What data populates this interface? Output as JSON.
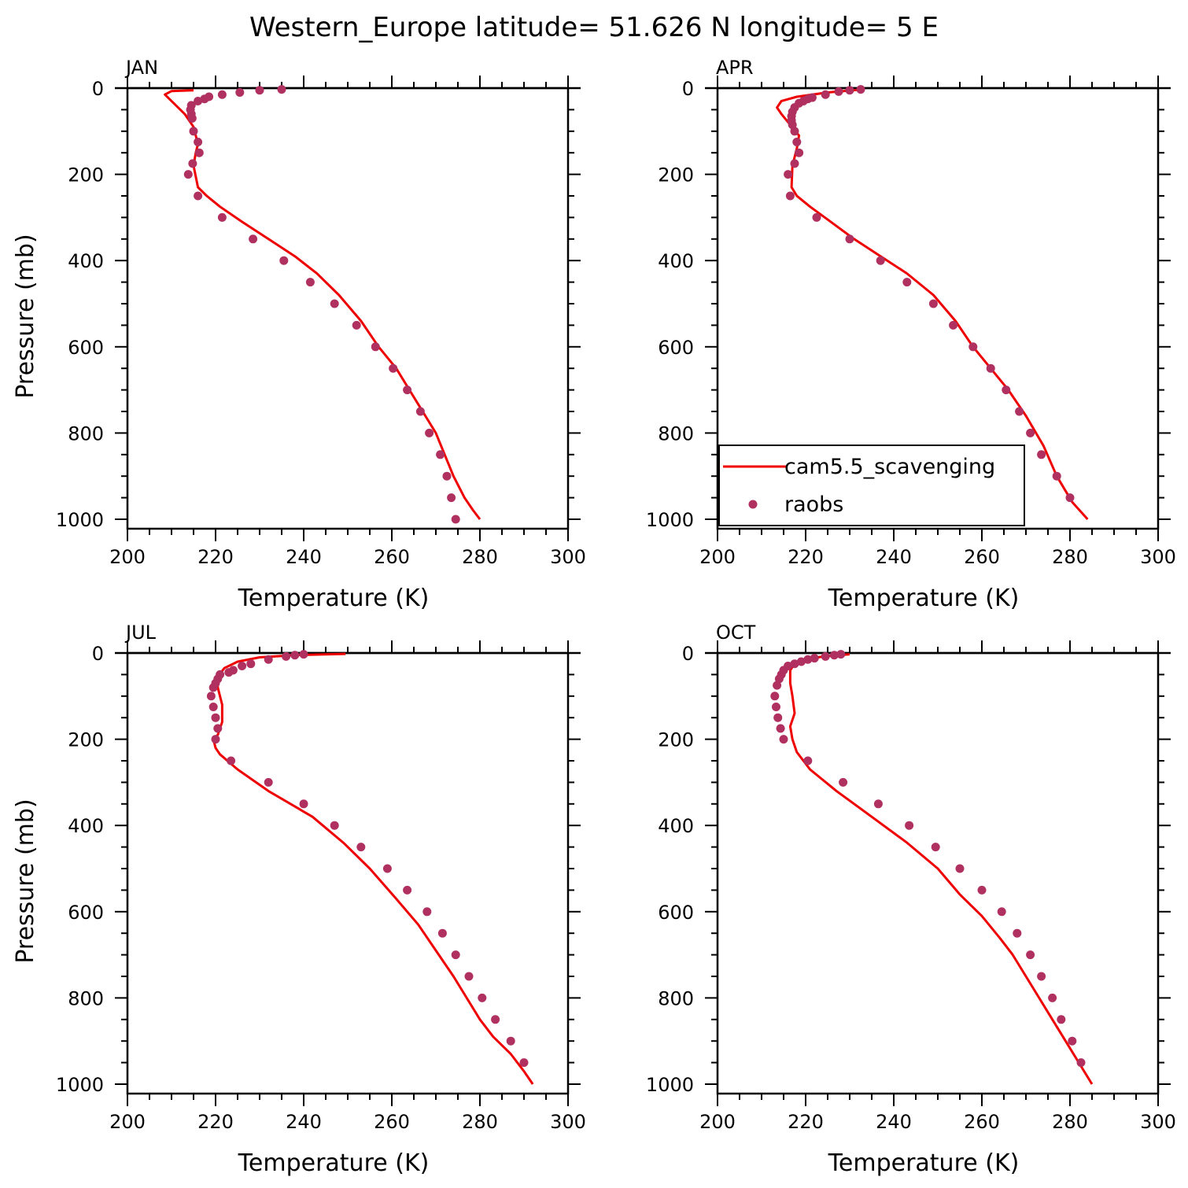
{
  "title": "Western_Europe  latitude= 51.626 N longitude= 5 E",
  "chart_data": [
    {
      "type": "line",
      "panel": "JAN",
      "xlabel": "Temperature (K)",
      "ylabel": "Pressure (mb)",
      "xlim": [
        200,
        300
      ],
      "ylim": [
        1000,
        0
      ],
      "xticks": [
        "200",
        "220",
        "240",
        "260",
        "280",
        "300"
      ],
      "yticks": [
        "0",
        "200",
        "400",
        "600",
        "800",
        "1000"
      ],
      "series": [
        {
          "name": "cam5.5_scavenging",
          "kind": "line",
          "color": "#ee0000",
          "x": [
            215,
            210,
            208.5,
            210,
            213,
            215,
            216,
            215.5,
            215,
            216,
            218,
            221,
            226,
            232,
            238,
            243,
            248,
            253,
            257,
            261,
            264,
            267,
            270,
            272,
            274,
            276.5,
            278.5,
            280
          ],
          "y": [
            5,
            7,
            15,
            30,
            60,
            90,
            130,
            150,
            180,
            230,
            250,
            275,
            310,
            350,
            390,
            430,
            480,
            540,
            600,
            650,
            700,
            750,
            800,
            850,
            900,
            950,
            980,
            1000
          ]
        },
        {
          "name": "raobs",
          "kind": "scatter",
          "color": "#b03060",
          "x": [
            235,
            230,
            225.5,
            221.5,
            218.5,
            217.5,
            216,
            214.5,
            214.3,
            214.5,
            214.7,
            215,
            216,
            216.3,
            214.8,
            213.8,
            216,
            221.5,
            228.5,
            235.5,
            241.5,
            247,
            252,
            256.3,
            260.3,
            263.5,
            266.5,
            268.5,
            271,
            272.5,
            273.5,
            274.5
          ],
          "y": [
            3,
            5,
            10,
            15,
            20,
            25,
            30,
            40,
            50,
            60,
            70,
            100,
            125,
            150,
            175,
            200,
            250,
            300,
            350,
            400,
            450,
            500,
            550,
            600,
            650,
            700,
            750,
            800,
            850,
            900,
            950,
            1000
          ]
        }
      ]
    },
    {
      "type": "line",
      "panel": "APR",
      "xlabel": "Temperature (K)",
      "ylabel": "",
      "xlim": [
        200,
        300
      ],
      "ylim": [
        1000,
        0
      ],
      "xticks": [
        "200",
        "220",
        "240",
        "260",
        "280",
        "300"
      ],
      "yticks": [
        "0",
        "200",
        "400",
        "600",
        "800",
        "1000"
      ],
      "legend": {
        "position": "bottom-left",
        "entries": [
          "cam5.5_scavenging",
          "raobs"
        ]
      },
      "series": [
        {
          "name": "cam5.5_scavenging",
          "kind": "line",
          "color": "#ee0000",
          "x": [
            233,
            225,
            218,
            214.5,
            213.5,
            214.5,
            216.5,
            218.5,
            218,
            217,
            216.8,
            218,
            221,
            225,
            231,
            237,
            243,
            249,
            254,
            258,
            262,
            266,
            270,
            274,
            277,
            280.5,
            284
          ],
          "y": [
            3,
            10,
            20,
            30,
            45,
            60,
            85,
            110,
            140,
            180,
            230,
            250,
            275,
            305,
            350,
            390,
            430,
            480,
            540,
            600,
            650,
            700,
            760,
            830,
            900,
            960,
            1000
          ]
        },
        {
          "name": "raobs",
          "kind": "scatter",
          "color": "#b03060",
          "x": [
            232.5,
            230,
            227.5,
            224.5,
            221.5,
            220.5,
            219.5,
            218.5,
            217.5,
            217,
            216.8,
            216.8,
            217,
            217.5,
            218,
            218.5,
            217.5,
            216,
            216.5,
            222.5,
            230,
            237,
            243,
            249,
            253.5,
            258,
            262,
            265.5,
            268.5,
            271,
            273.5,
            277,
            280
          ],
          "y": [
            3,
            5,
            8,
            15,
            22,
            25,
            30,
            35,
            45,
            55,
            65,
            75,
            85,
            100,
            125,
            150,
            175,
            200,
            250,
            300,
            350,
            400,
            450,
            500,
            550,
            600,
            650,
            700,
            750,
            800,
            850,
            900,
            950
          ]
        }
      ]
    },
    {
      "type": "line",
      "panel": "JUL",
      "xlabel": "Temperature (K)",
      "ylabel": "Pressure (mb)",
      "xlim": [
        200,
        300
      ],
      "ylim": [
        1000,
        0
      ],
      "xticks": [
        "200",
        "220",
        "240",
        "260",
        "280",
        "300"
      ],
      "yticks": [
        "0",
        "200",
        "400",
        "600",
        "800",
        "1000"
      ],
      "series": [
        {
          "name": "cam5.5_scavenging",
          "kind": "line",
          "color": "#ee0000",
          "x": [
            249.5,
            238,
            230,
            225,
            222,
            220.5,
            220.5,
            221.5,
            221.5,
            220.5,
            219.5,
            220,
            221,
            225,
            232,
            242,
            249,
            255,
            261,
            266,
            270,
            274,
            277,
            280,
            283,
            287,
            290,
            292
          ],
          "y": [
            2,
            5,
            10,
            20,
            35,
            55,
            80,
            120,
            160,
            190,
            200,
            220,
            235,
            270,
            320,
            380,
            440,
            500,
            570,
            630,
            690,
            750,
            800,
            850,
            890,
            930,
            970,
            1000
          ]
        },
        {
          "name": "raobs",
          "kind": "scatter",
          "color": "#b03060",
          "x": [
            240,
            238,
            236,
            232,
            228,
            226,
            224,
            223,
            221,
            220.5,
            220,
            219.5,
            219,
            219.5,
            220,
            220.5,
            220,
            223.5,
            232,
            240,
            247,
            253,
            259,
            263.5,
            268,
            271.5,
            274.5,
            277.5,
            280.5,
            283.5,
            287,
            290
          ],
          "y": [
            3,
            5,
            8,
            15,
            25,
            30,
            40,
            45,
            50,
            60,
            70,
            80,
            100,
            125,
            150,
            175,
            200,
            250,
            300,
            350,
            400,
            450,
            500,
            550,
            600,
            650,
            700,
            750,
            800,
            850,
            900,
            950
          ]
        }
      ]
    },
    {
      "type": "line",
      "panel": "OCT",
      "xlabel": "Temperature (K)",
      "ylabel": "",
      "xlim": [
        200,
        300
      ],
      "ylim": [
        1000,
        0
      ],
      "xticks": [
        "200",
        "220",
        "240",
        "260",
        "280",
        "300"
      ],
      "yticks": [
        "0",
        "200",
        "400",
        "600",
        "800",
        "1000"
      ],
      "series": [
        {
          "name": "cam5.5_scavenging",
          "kind": "line",
          "color": "#ee0000",
          "x": [
            230,
            224,
            220,
            217.5,
            216.5,
            216.5,
            217,
            217.5,
            216.5,
            217,
            218,
            221,
            227,
            235,
            243,
            250,
            255,
            260,
            264,
            267,
            270,
            273,
            276,
            279,
            282,
            285
          ],
          "y": [
            3,
            8,
            15,
            25,
            40,
            70,
            100,
            140,
            170,
            200,
            230,
            270,
            320,
            380,
            440,
            500,
            560,
            610,
            660,
            700,
            750,
            800,
            850,
            900,
            950,
            1000
          ]
        },
        {
          "name": "raobs",
          "kind": "scatter",
          "color": "#b03060",
          "x": [
            228,
            226.5,
            224.5,
            222,
            220.5,
            219,
            217.5,
            216,
            215,
            214.5,
            214,
            213.5,
            213,
            213.3,
            213.7,
            214.3,
            215,
            220.5,
            228.5,
            236.5,
            243.5,
            249.5,
            255,
            260,
            264.5,
            268,
            271,
            273.5,
            276,
            278,
            280.5,
            282.5
          ],
          "y": [
            3,
            5,
            8,
            12,
            15,
            20,
            25,
            30,
            40,
            50,
            60,
            75,
            100,
            125,
            150,
            175,
            200,
            250,
            300,
            350,
            400,
            450,
            500,
            550,
            600,
            650,
            700,
            750,
            800,
            850,
            900,
            950
          ]
        }
      ]
    }
  ]
}
